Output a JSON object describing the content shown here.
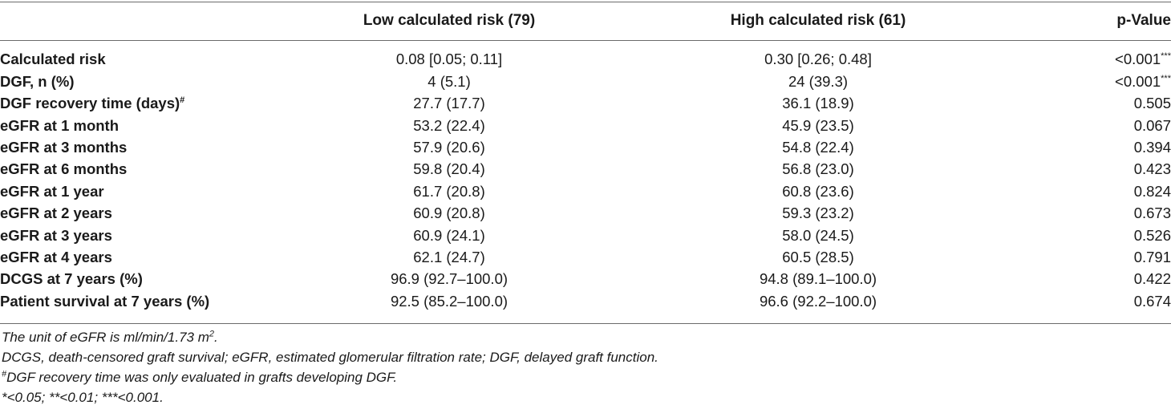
{
  "table": {
    "headers": [
      "",
      "Low calculated risk (79)",
      "High calculated risk (61)",
      "p-Value"
    ],
    "rows": [
      {
        "label": "Calculated risk",
        "sup": "",
        "low": "0.08 [0.05; 0.11]",
        "high": "0.30 [0.26; 0.48]",
        "p": "<0.001",
        "psup": "***"
      },
      {
        "label": "DGF, n (%)",
        "sup": "",
        "low": "4 (5.1)",
        "high": "24 (39.3)",
        "p": "<0.001",
        "psup": "***"
      },
      {
        "label": "DGF recovery time (days)",
        "sup": "#",
        "low": "27.7 (17.7)",
        "high": "36.1 (18.9)",
        "p": "0.505",
        "psup": ""
      },
      {
        "label": "eGFR at 1 month",
        "sup": "",
        "low": "53.2 (22.4)",
        "high": "45.9 (23.5)",
        "p": "0.067",
        "psup": ""
      },
      {
        "label": "eGFR at 3 months",
        "sup": "",
        "low": "57.9 (20.6)",
        "high": "54.8 (22.4)",
        "p": "0.394",
        "psup": ""
      },
      {
        "label": "eGFR at 6 months",
        "sup": "",
        "low": "59.8 (20.4)",
        "high": "56.8 (23.0)",
        "p": "0.423",
        "psup": ""
      },
      {
        "label": "eGFR at 1 year",
        "sup": "",
        "low": "61.7 (20.8)",
        "high": "60.8 (23.6)",
        "p": "0.824",
        "psup": ""
      },
      {
        "label": "eGFR at 2 years",
        "sup": "",
        "low": "60.9 (20.8)",
        "high": "59.3 (23.2)",
        "p": "0.673",
        "psup": ""
      },
      {
        "label": "eGFR at 3 years",
        "sup": "",
        "low": "60.9 (24.1)",
        "high": "58.0 (24.5)",
        "p": "0.526",
        "psup": ""
      },
      {
        "label": "eGFR at 4 years",
        "sup": "",
        "low": "62.1 (24.7)",
        "high": "60.5 (28.5)",
        "p": "0.791",
        "psup": ""
      },
      {
        "label": "DCGS at 7 years (%)",
        "sup": "",
        "low": "96.9 (92.7–100.0)",
        "high": "94.8 (89.1–100.0)",
        "p": "0.422",
        "psup": ""
      },
      {
        "label": "Patient survival at 7 years (%)",
        "sup": "",
        "low": "92.5 (85.2–100.0)",
        "high": "96.6 (92.2–100.0)",
        "p": "0.674",
        "psup": ""
      }
    ]
  },
  "footnotes": {
    "unit_text": "The unit of eGFR is ml/min/1.73 m",
    "unit_sup": "2",
    "unit_end": ".",
    "abbreviations": "DCGS, death-censored graft survival; eGFR, estimated glomerular filtration rate; DGF, delayed graft function.",
    "hash_sup": "#",
    "hash_text": "DGF recovery time was only evaluated in grafts developing DGF.",
    "significance": "*<0.05; **<0.01; ***<0.001."
  }
}
